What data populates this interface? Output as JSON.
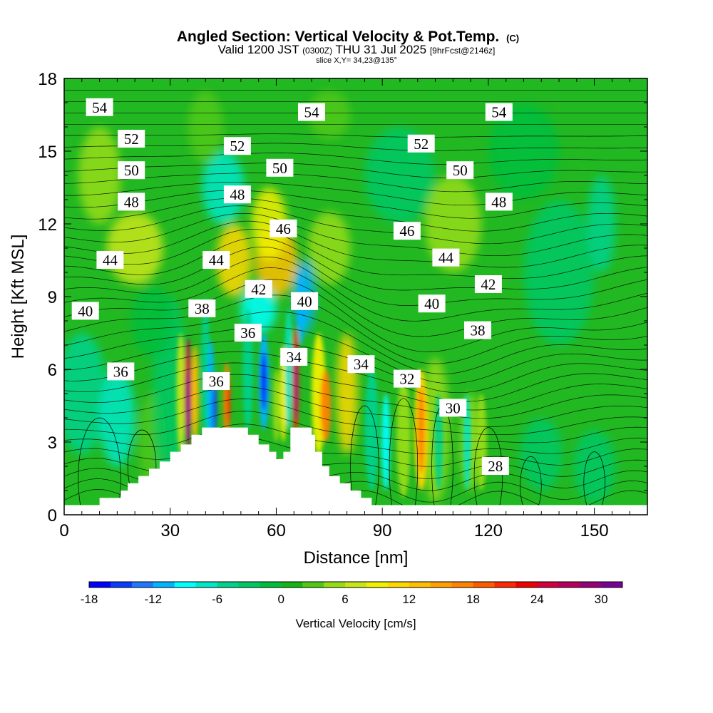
{
  "chart_data": {
    "type": "heatmap",
    "title": "Angled Section: Vertical Velocity & Pot.Temp.",
    "title_mark": "(C)",
    "subtitle": {
      "part1": "Valid 1200 JST",
      "part2": "(0300Z)",
      "part3": "THU 31 Jul 2025",
      "part4": "[9hrFcst@2146z]"
    },
    "slice_label": "slice X,Y= 34,23@135°",
    "xlabel": "Distance [nm]",
    "ylabel": "Height [Kft MSL]",
    "xlim": [
      0,
      165
    ],
    "ylim": [
      0,
      18
    ],
    "x_ticks": [
      "0",
      "30",
      "60",
      "90",
      "120",
      "150"
    ],
    "x_tick_values": [
      0,
      30,
      60,
      90,
      120,
      150
    ],
    "y_ticks": [
      "0",
      "3",
      "6",
      "9",
      "12",
      "15",
      "18"
    ],
    "y_tick_values": [
      0,
      3,
      6,
      9,
      12,
      15,
      18
    ],
    "colorbar": {
      "label": "Vertical Velocity [cm/s]",
      "min": -18,
      "max": 32,
      "step": 2,
      "tick_labels": [
        "-18",
        "-12",
        "-6",
        "0",
        "6",
        "12",
        "18",
        "24",
        "30"
      ],
      "tick_values": [
        -18,
        -12,
        -6,
        0,
        6,
        12,
        18,
        24,
        30
      ],
      "colors": [
        "#0000ff",
        "#0a3cff",
        "#1e78ff",
        "#00b4ff",
        "#00ffff",
        "#00e6c8",
        "#00d28c",
        "#00c864",
        "#00be3c",
        "#14b414",
        "#50c814",
        "#96dc14",
        "#c8e614",
        "#f0f000",
        "#ffd700",
        "#ffbe00",
        "#ffa000",
        "#ff8200",
        "#ff5a00",
        "#ff2800",
        "#f00000",
        "#d2003c",
        "#b4005a",
        "#960078",
        "#780096"
      ]
    },
    "contour_labels": [
      {
        "text": "54",
        "x": 10,
        "y": 16.8
      },
      {
        "text": "54",
        "x": 70,
        "y": 16.6
      },
      {
        "text": "54",
        "x": 123,
        "y": 16.6
      },
      {
        "text": "52",
        "x": 19,
        "y": 15.5
      },
      {
        "text": "52",
        "x": 49,
        "y": 15.2
      },
      {
        "text": "52",
        "x": 101,
        "y": 15.3
      },
      {
        "text": "50",
        "x": 19,
        "y": 14.2
      },
      {
        "text": "50",
        "x": 61,
        "y": 14.3
      },
      {
        "text": "50",
        "x": 112,
        "y": 14.2
      },
      {
        "text": "48",
        "x": 19,
        "y": 12.9
      },
      {
        "text": "48",
        "x": 49,
        "y": 13.2
      },
      {
        "text": "48",
        "x": 123,
        "y": 12.9
      },
      {
        "text": "46",
        "x": 62,
        "y": 11.8
      },
      {
        "text": "46",
        "x": 97,
        "y": 11.7
      },
      {
        "text": "44",
        "x": 13,
        "y": 10.5
      },
      {
        "text": "44",
        "x": 43,
        "y": 10.5
      },
      {
        "text": "44",
        "x": 108,
        "y": 10.6
      },
      {
        "text": "42",
        "x": 55,
        "y": 9.3
      },
      {
        "text": "42",
        "x": 120,
        "y": 9.5
      },
      {
        "text": "40",
        "x": 6,
        "y": 8.4
      },
      {
        "text": "40",
        "x": 68,
        "y": 8.8
      },
      {
        "text": "40",
        "x": 104,
        "y": 8.7
      },
      {
        "text": "38",
        "x": 39,
        "y": 8.5
      },
      {
        "text": "38",
        "x": 117,
        "y": 7.6
      },
      {
        "text": "36",
        "x": 52,
        "y": 7.5
      },
      {
        "text": "36",
        "x": 16,
        "y": 5.9
      },
      {
        "text": "36",
        "x": 43,
        "y": 5.5
      },
      {
        "text": "34",
        "x": 65,
        "y": 6.5
      },
      {
        "text": "34",
        "x": 84,
        "y": 6.2
      },
      {
        "text": "32",
        "x": 97,
        "y": 5.6
      },
      {
        "text": "30",
        "x": 110,
        "y": 4.4
      },
      {
        "text": "28",
        "x": 122,
        "y": 2.0
      }
    ],
    "terrain": [
      [
        0,
        0.4
      ],
      [
        10,
        0.4
      ],
      [
        10,
        0.7
      ],
      [
        16,
        0.7
      ],
      [
        16,
        1.0
      ],
      [
        18,
        1.0
      ],
      [
        18,
        1.3
      ],
      [
        21,
        1.3
      ],
      [
        21,
        1.6
      ],
      [
        24,
        1.6
      ],
      [
        24,
        1.9
      ],
      [
        27,
        1.9
      ],
      [
        27,
        2.2
      ],
      [
        30,
        2.2
      ],
      [
        30,
        2.6
      ],
      [
        33,
        2.6
      ],
      [
        33,
        2.9
      ],
      [
        36,
        2.9
      ],
      [
        36,
        3.3
      ],
      [
        39,
        3.3
      ],
      [
        39,
        3.6
      ],
      [
        52,
        3.6
      ],
      [
        52,
        3.3
      ],
      [
        55,
        3.3
      ],
      [
        55,
        2.9
      ],
      [
        58,
        2.9
      ],
      [
        58,
        2.6
      ],
      [
        60,
        2.6
      ],
      [
        60,
        2.3
      ],
      [
        62,
        2.3
      ],
      [
        62,
        2.6
      ],
      [
        64,
        2.6
      ],
      [
        64,
        3.6
      ],
      [
        70,
        3.6
      ],
      [
        70,
        3.3
      ],
      [
        71,
        3.3
      ],
      [
        71,
        2.6
      ],
      [
        73,
        2.6
      ],
      [
        73,
        2.0
      ],
      [
        75,
        2.0
      ],
      [
        75,
        1.6
      ],
      [
        78,
        1.6
      ],
      [
        78,
        1.3
      ],
      [
        81,
        1.3
      ],
      [
        81,
        1.0
      ],
      [
        84,
        1.0
      ],
      [
        84,
        0.7
      ],
      [
        87,
        0.7
      ],
      [
        87,
        0.4
      ],
      [
        165,
        0.4
      ],
      [
        165,
        0
      ],
      [
        0,
        0
      ]
    ]
  }
}
